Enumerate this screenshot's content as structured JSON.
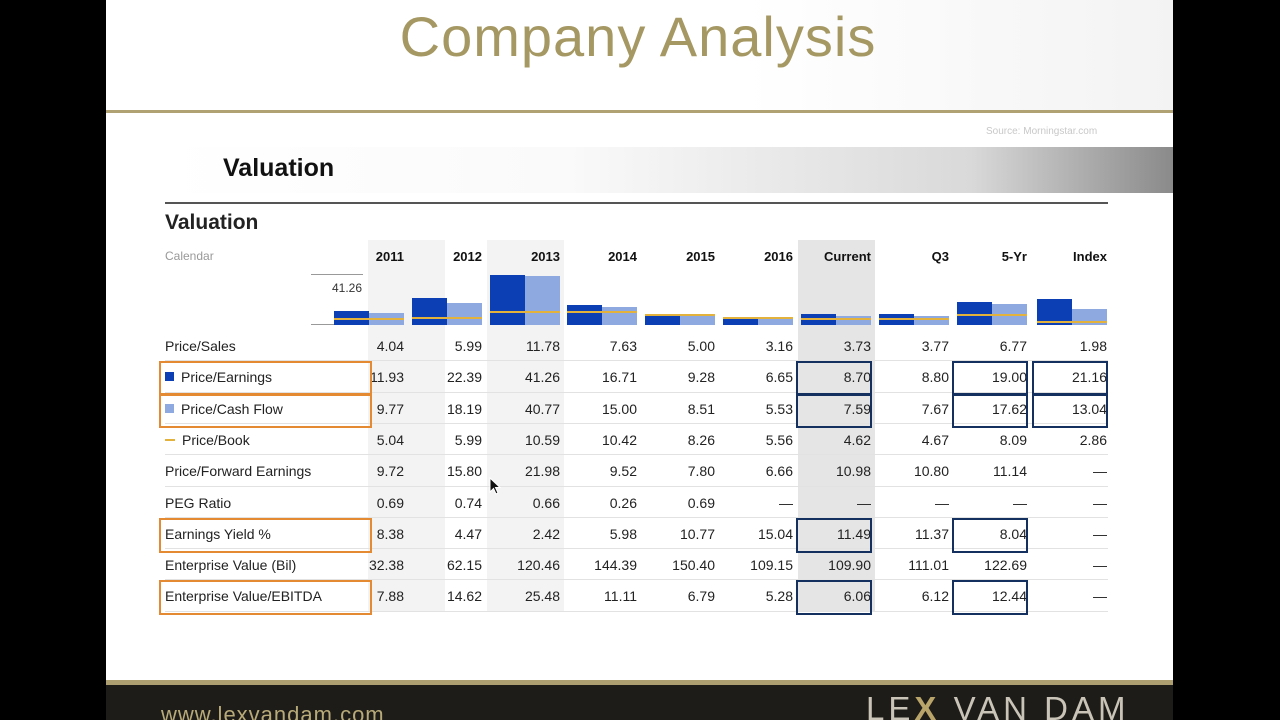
{
  "slide": {
    "title": "Company Analysis",
    "source": "Source: Morningstar.com",
    "section_heading": "Valuation",
    "table_heading": "Valuation",
    "calendar_label": "Calendar",
    "axis_max_label": "41.26"
  },
  "columns": [
    "2011",
    "2012",
    "2013",
    "2014",
    "2015",
    "2016",
    "Current",
    "Q3",
    "5-Yr",
    "Index"
  ],
  "rows": [
    {
      "label": "Price/Sales",
      "values": [
        "4.04",
        "5.99",
        "11.78",
        "7.63",
        "5.00",
        "3.16",
        "3.73",
        "3.77",
        "6.77",
        "1.98"
      ]
    },
    {
      "label": "Price/Earnings",
      "values": [
        "11.93",
        "22.39",
        "41.26",
        "16.71",
        "9.28",
        "6.65",
        "8.70",
        "8.80",
        "19.00",
        "21.16"
      ]
    },
    {
      "label": "Price/Cash Flow",
      "values": [
        "9.77",
        "18.19",
        "40.77",
        "15.00",
        "8.51",
        "5.53",
        "7.59",
        "7.67",
        "17.62",
        "13.04"
      ]
    },
    {
      "label": "Price/Book",
      "values": [
        "5.04",
        "5.99",
        "10.59",
        "10.42",
        "8.26",
        "5.56",
        "4.62",
        "4.67",
        "8.09",
        "2.86"
      ]
    },
    {
      "label": "Price/Forward Earnings",
      "values": [
        "9.72",
        "15.80",
        "21.98",
        "9.52",
        "7.80",
        "6.66",
        "10.98",
        "10.80",
        "11.14",
        "—"
      ]
    },
    {
      "label": "PEG Ratio",
      "values": [
        "0.69",
        "0.74",
        "0.66",
        "0.26",
        "0.69",
        "—",
        "—",
        "—",
        "—",
        "—"
      ]
    },
    {
      "label": "Earnings Yield %",
      "values": [
        "8.38",
        "4.47",
        "2.42",
        "5.98",
        "10.77",
        "15.04",
        "11.49",
        "11.37",
        "8.04",
        "—"
      ]
    },
    {
      "label": "Enterprise Value (Bil)",
      "values": [
        "32.38",
        "62.15",
        "120.46",
        "144.39",
        "150.40",
        "109.15",
        "109.90",
        "111.01",
        "122.69",
        "—"
      ]
    },
    {
      "label": "Enterprise Value/EBITDA",
      "values": [
        "7.88",
        "14.62",
        "25.48",
        "11.11",
        "6.79",
        "5.28",
        "6.06",
        "6.12",
        "12.44",
        "—"
      ]
    }
  ],
  "chart_data": {
    "type": "bar",
    "categories": [
      "2011",
      "2012",
      "2013",
      "2014",
      "2015",
      "2016",
      "Current",
      "Q3",
      "5-Yr",
      "Index"
    ],
    "series": [
      {
        "name": "Price/Earnings",
        "values": [
          11.93,
          22.39,
          41.26,
          16.71,
          9.28,
          6.65,
          8.7,
          8.8,
          19.0,
          21.16
        ],
        "color": "#0d3fb4"
      },
      {
        "name": "Price/Cash Flow",
        "values": [
          9.77,
          18.19,
          40.77,
          15.0,
          8.51,
          5.53,
          7.59,
          7.67,
          17.62,
          13.04
        ],
        "color": "#8ea9df"
      },
      {
        "name": "Price/Book",
        "values": [
          5.04,
          5.99,
          10.59,
          10.42,
          8.26,
          5.56,
          4.62,
          4.67,
          8.09,
          2.86
        ],
        "color": "#e3b23c"
      }
    ],
    "ylim": [
      0,
      41.26
    ]
  },
  "highlights": {
    "orange_rows": [
      "Price/Earnings",
      "Price/Cash Flow",
      "Earnings Yield %",
      "Enterprise Value/EBITDA"
    ],
    "orange_color": "#e48a33",
    "navy_color": "#13305e"
  },
  "footer": {
    "url": "www.lexvandam.com",
    "logo_left": "LE",
    "logo_x": "X",
    "logo_right": "VAN DAM"
  }
}
